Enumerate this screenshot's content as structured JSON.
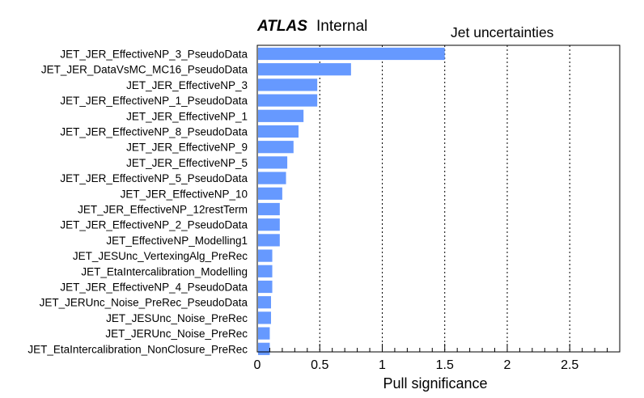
{
  "header": {
    "experiment": "ATLAS",
    "status": "Internal"
  },
  "chart_data": {
    "type": "bar",
    "orientation": "horizontal",
    "title": "Jet uncertainties",
    "xlabel": "Pull significance",
    "ylabel": "",
    "xlim": [
      0,
      2.9
    ],
    "xticks": [
      0,
      0.5,
      1,
      1.5,
      2,
      2.5
    ],
    "xtick_labels": [
      "0",
      "0.5",
      "1",
      "1.5",
      "2",
      "2.5"
    ],
    "grid": "vertical dotted lines at 0.5, 1, 1.5, 2, 2.5",
    "bar_color": "#6699ff",
    "categories": [
      "JET_JER_EffectiveNP_3_PseudoData",
      "JET_JER_DataVsMC_MC16_PseudoData",
      "JET_JER_EffectiveNP_3",
      "JET_JER_EffectiveNP_1_PseudoData",
      "JET_JER_EffectiveNP_1",
      "JET_JER_EffectiveNP_8_PseudoData",
      "JET_JER_EffectiveNP_9",
      "JET_JER_EffectiveNP_5",
      "JET_JER_EffectiveNP_5_PseudoData",
      "JET_JER_EffectiveNP_10",
      "JET_JER_EffectiveNP_12restTerm",
      "JET_JER_EffectiveNP_2_PseudoData",
      "JET_EffectiveNP_Modelling1",
      "JET_JESUnc_VertexingAlg_PreRec",
      "JET_EtaIntercalibration_Modelling",
      "JET_JER_EffectiveNP_4_PseudoData",
      "JET_JERUnc_Noise_PreRec_PseudoData",
      "JET_JESUnc_Noise_PreRec",
      "JET_JERUnc_Noise_PreRec",
      "JET_EtaIntercalibration_NonClosure_PreRec"
    ],
    "values": [
      1.5,
      0.75,
      0.48,
      0.48,
      0.37,
      0.33,
      0.29,
      0.24,
      0.23,
      0.2,
      0.18,
      0.18,
      0.18,
      0.12,
      0.12,
      0.12,
      0.11,
      0.11,
      0.1,
      0.1
    ]
  }
}
